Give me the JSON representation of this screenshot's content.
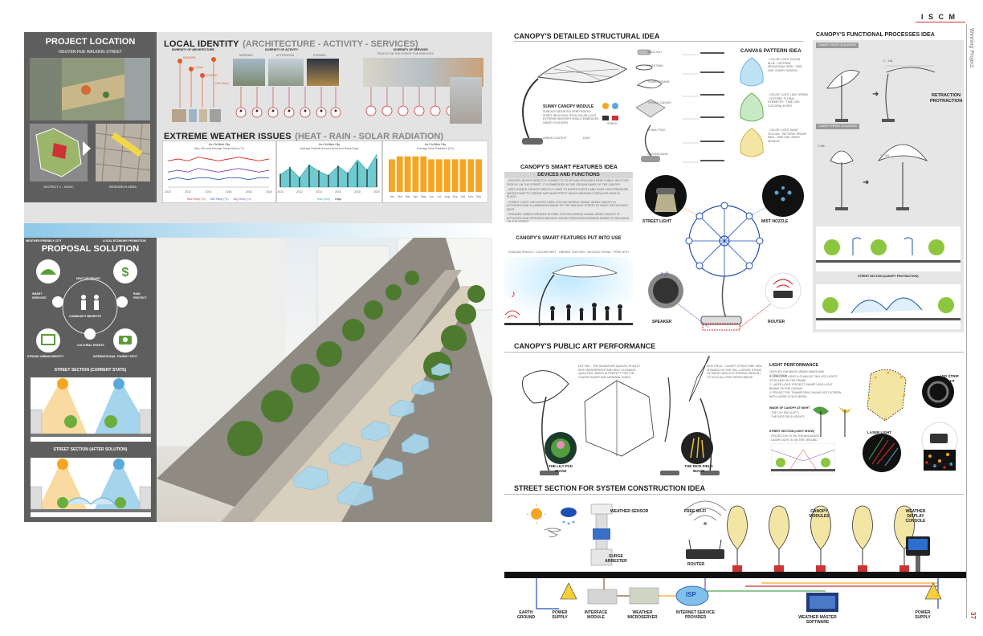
{
  "header": {
    "brand": "I S C M",
    "side_label": "Winning Project",
    "page_number": "37"
  },
  "left": {
    "location": {
      "title": "PROJECT LOCATION",
      "subtitle": "NGUYEN HUE WALKING STREET",
      "district_label": "DISTRICT 1 - HCMC",
      "research_label": "RESEARCH AREA"
    },
    "identity": {
      "title": "LOCAL IDENTITY",
      "subtitle": "(ARCHITECTURE - ACTIVITY - SERVICES)",
      "architecture_label": "DIVERSITY OF ARCHITECTURE",
      "activity_label": "DIVERSITY OF ACTIVITY",
      "activity_times": [
        "MORNING",
        "AFTERNOON",
        "EVENING"
      ],
      "services_label": "DIVERSITY OF SERVICES",
      "services_sub": "PEOPLE ON THE STREET FOR SERVICES",
      "arch_items": [
        "MODERN",
        "LOCAL",
        "CLASSIC",
        "COLONIAL"
      ]
    },
    "weather": {
      "title": "EXTREME WEATHER ISSUES",
      "subtitle": "(HEAT - RAIN - SOLAR RADIATION)",
      "charts": [
        {
          "city": "Ho Chi Minh City",
          "caption": "Max, Min and Average Temperature (°C)",
          "legend": [
            "Max Temp (°C)",
            "Min Temp (°C)",
            "Avg Temp (°C)"
          ],
          "years": [
            "2010",
            "2012",
            "2014",
            "2016",
            "2018",
            "2020"
          ]
        },
        {
          "city": "Ho Chi Minh City",
          "caption": "Average Rainfall Amount (mm) and Rainy Days",
          "legend": [
            "Rain (mm)",
            "Days"
          ],
          "years": [
            "2010",
            "2012",
            "2014",
            "2016",
            "2018",
            "2020"
          ]
        },
        {
          "city": "Ho Chi Minh City",
          "caption": "Average Solar Radiation (UV)",
          "months": [
            "Jan",
            "Feb",
            "Mar",
            "Apr",
            "May",
            "Jun",
            "Jul",
            "Aug",
            "Sep",
            "Oct",
            "Nov",
            "Dec"
          ]
        }
      ]
    },
    "proposal": {
      "title": "PROPOSAL SOLUTION",
      "labels": [
        "WEATHER FRIENDLY CITY",
        "LOCAL ECONOMY PROMOTION",
        "HEAT DECREASE",
        "SMART SERVICES",
        "RAIN PROTECT",
        "COMMUNITY BENEFITS",
        "CULTURAL EVENTS",
        "STRONG URBAN IDENTITY",
        "INTERNATIONAL TOURIST SPOT"
      ],
      "section_current": "STREET SECTION (CURRENT STATE)",
      "section_after": "STREET SECTION (AFTER SOLUTION)"
    }
  },
  "right": {
    "structural": {
      "title": "CANOPY'S DETAILED STRUCTURAL IDEA",
      "module_title": "SUNNY CANOPY MODULE",
      "module_desc": "SURFACE MOUNTED PERFORATED SHEET RELIEVING FROM SOLAR LIGHT, EXTREME WEATHER SHIELD EMBEDDED SMART FEATURES",
      "parts": [
        "SLIDE NUT",
        "FIXED RING",
        "TENSILE FRAME",
        "TENSILE CANVAS",
        "SPINAL POLE",
        "GROUND BASE"
      ],
      "legend": [
        "URBAN CONTEXT",
        "EASY",
        "SHIELD"
      ]
    },
    "pattern": {
      "title": "CANVAS PATTERN IDEA",
      "items": [
        "- COLOR: LIGHT OCEAN BLUE - PATTERN: HEXAGONAL GRID - TIME USE: SUNNY SEASON",
        "- COLOR: LIGHT LEAF GREEN - PATTERN: FLORAL SYMMETRY - TIME USE: CULTURAL EVENT",
        "- COLOR: LIGHT SAND YELLOW - PATTERN: SPIDER WEB - TIME USE: RAINY SEASON"
      ]
    },
    "smart": {
      "title": "CANOPY'S SMART FEATURES IDEA",
      "devices_title": "DEVICES AND FUNCTIONS",
      "devices": [
        "- ROUTER: DEVICE DIRECTLY CONNECTS TO ISP AND PROVIDES FREE PUBLIC WI-FI FOR PEOPLE ON THE STREET. IT IS EMBEDDED IN THE GROUND BASE OF THE CANOPY.",
        "- MIST NOZZLE: DEVICE DIRECTLY LINKS TO WATER SUPPLY AND USES HIGH-PRESSURE WATER PUMP TO CREATE MIST AND EFFECT WHICH INSTANTLY REDUCES HEAT IN PLACE.",
        "- STREET LIGHT: LED LIGHTS USED FOR DELIVERING SIGNAL WHEN CANOPY IS ACTIVATED AND ILLUMINATING IMAGE OF THE WALKING STREET AT NIGHT OR ON RAINY DAYS.",
        "- SPEAKER: WIRED SPEAKER IS USED FOR DELIVERING SIGNAL WHEN CANOPY IS ACTIVATED AND OFFERING MELODIC SOUND FROM ENDLESSNESS SENSE OF RELAXING ON THE STREET."
      ],
      "use_title": "CANOPY'S SMART FEATURES PUT INTO USE",
      "use_sub": "SHADING SPACES - COOLING MIST - VIBRANT LIGHTING - MELODIC SOUND - FREE WI-FI",
      "devices_labels": [
        "STREET LIGHT",
        "MIST NOZZLE",
        "SPEAKER",
        "ROUTER"
      ]
    },
    "functional": {
      "title": "CANOPY'S FUNCTIONAL PROCESSES IDEA",
      "tab1": "CANOPY RIGHT ELEVATION",
      "tab2": "CANOPY FRONT ELEVATION",
      "retraction_title": "RETRACTION PROTRACTION",
      "section1": "STREET SECTION (CANOPY RETRACTION)",
      "section2": "STREET SECTION (CANOPY PROTRACTION)",
      "dim1": "C - 188",
      "dim2": "T - 188",
      "dim3": "3.488"
    },
    "public_art": {
      "title": "CANOPY'S PUBLIC ART PERFORMANCE",
      "lily_text": "LILY PAD - THE SIGNATURE AQUATIC PLANTS WITH WATERPROOF AND SELF-CLEANING QUALITIES, WHICH IS PERFECT FOR THE CANVAS SHAPE AND MATERIAL IDEAS.",
      "rice_text": "RICE FIELD - CANOPY STRUCTURE IDEA IS BASED ON THE TALL CURVED STEMS OF PADDY WHICH IS STRONG ENOUGH TO HOLD ALL RICE SEEDS ABOVE.",
      "lily_label": "THE LILY PAD IMAGE",
      "rice_label": "THE RICE FIELD IMAGE",
      "light_title": "LIGHT PERFORMANCE",
      "light_lines": [
        "DEVICES: ENHANCE URBAN IMAGE AND ATTRACTION",
        "1. LED STRIP LIGHT: A CHAIN OF TINY LED LIGHTS ATTACHED ON THE FRAME",
        "2. LASER LIGHT: PROJECT SHARP VIVID LIGHT BEAMS ON THE CANVAS",
        "3. PROJECTOR: TRANSFORM CANVAS INTO SCREEN WITH LARGE-SCALE MEDIA"
      ],
      "night_label": "IMAGE OF CANOPY AT NIGHT",
      "night_items": [
        "- THE LILY PAD (LEFT)",
        "- THE RICE FIELD (RIGHT)"
      ],
      "section_label": "STREET SECTION (LIGHT SHOW)",
      "section_items": [
        "- PROJECTOR IS ON THE BUILDINGS",
        "- LASER LIGHT IS ON THE GROUND"
      ],
      "devices": [
        "LED STRIP LIGHT",
        "LASER LIGHT",
        "PROJECTOR"
      ]
    },
    "construction": {
      "title": "STREET SECTION FOR SYSTEM CONSTRUCTION IDEA",
      "labels": {
        "weather_sensor": "WEATHER SENSOR",
        "surge": "SURGE ARRESTER",
        "wifi": "FREE WI-FI",
        "router": "ROUTER",
        "canopy": "CANOPY MODULES",
        "display": "WEATHER DISPLAY CONSOLE",
        "earth": "EARTH GROUND",
        "power1": "POWER SUPPLY",
        "interface": "INTERFACE MODULE",
        "micro": "WEATHER MICROSERVER",
        "isp": "ISP",
        "isp_full": "INTERNET SERVICE PROVIDER",
        "master": "WEATHER MASTER SOFTWARE",
        "power2": "POWER SUPPLY"
      }
    }
  },
  "chart_data": [
    {
      "type": "line",
      "title": "Ho Chi Minh City",
      "ylabel": "Max, Min and Average Temperature (°C)",
      "x": [
        "2010",
        "2011",
        "2012",
        "2013",
        "2014",
        "2015",
        "2016",
        "2017",
        "2018",
        "2019",
        "2020"
      ],
      "series": [
        {
          "name": "Max Temp (°C)",
          "values": [
            34,
            35,
            34,
            36,
            35,
            34,
            35,
            36,
            35,
            34,
            35
          ]
        },
        {
          "name": "Min Temp (°C)",
          "values": [
            24,
            25,
            24,
            25,
            25,
            24,
            25,
            25,
            24,
            25,
            25
          ]
        },
        {
          "name": "Avg Temp (°C)",
          "values": [
            28,
            29,
            28,
            30,
            29,
            28,
            29,
            30,
            29,
            28,
            29
          ]
        }
      ]
    },
    {
      "type": "area",
      "title": "Ho Chi Minh City",
      "ylabel": "Average Rainfall Amount (mm) and Rainy Days",
      "x": [
        "2010",
        "2011",
        "2012",
        "2013",
        "2014",
        "2015",
        "2016",
        "2017",
        "2018",
        "2019",
        "2020"
      ],
      "series": [
        {
          "name": "Rain (mm)",
          "values": [
            120,
            180,
            90,
            210,
            150,
            110,
            200,
            130,
            260,
            160,
            310
          ]
        },
        {
          "name": "Days",
          "values": [
            12,
            18,
            9,
            20,
            15,
            11,
            19,
            13,
            22,
            16,
            25
          ]
        }
      ]
    },
    {
      "type": "bar",
      "title": "Ho Chi Minh City",
      "ylabel": "Average Solar Radiation (UV)",
      "categories": [
        "Jan",
        "Feb",
        "Mar",
        "Apr",
        "May",
        "Jun",
        "Jul",
        "Aug",
        "Sep",
        "Oct",
        "Nov",
        "Dec"
      ],
      "values": [
        11,
        12,
        12,
        12,
        12,
        11,
        11,
        11,
        11,
        11,
        11,
        11
      ],
      "ylim": [
        0,
        13
      ]
    }
  ],
  "colors": {
    "accent_blue": "#8ec9e8",
    "panel_grey": "#e3e3e3",
    "dark_grey": "#5e5e5e",
    "orange": "#f4a623",
    "red": "#d9302c",
    "green": "#5a9c3a",
    "yellow_leaf": "#f3e6a4"
  }
}
